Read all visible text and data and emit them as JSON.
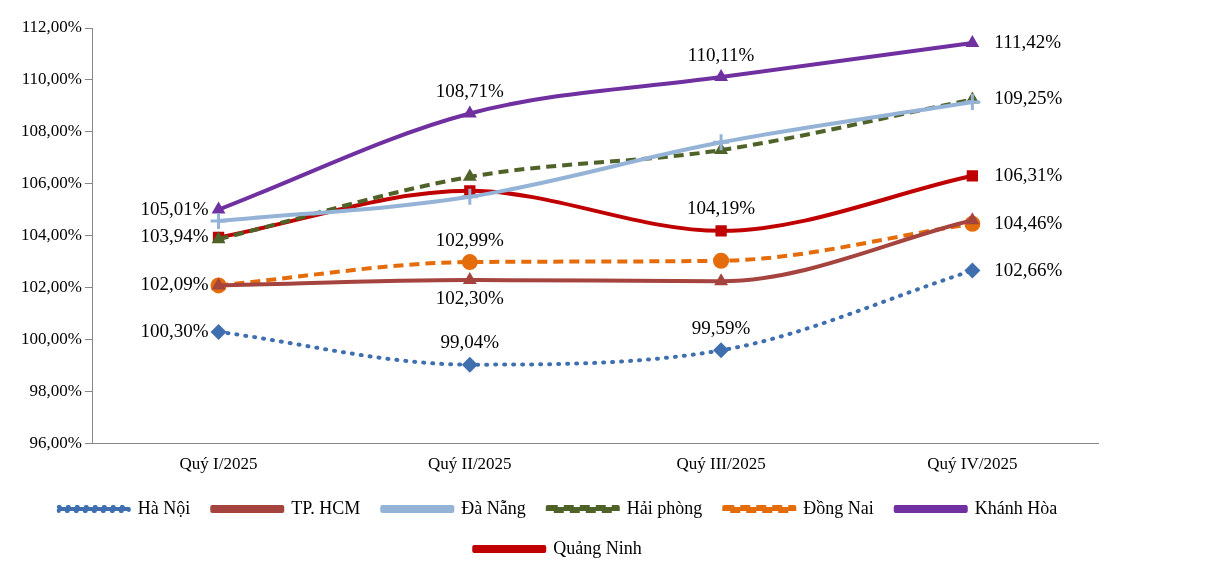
{
  "chart_data": {
    "type": "line",
    "categories": [
      "Quý I/2025",
      "Quý II/2025",
      "Quý III/2025",
      "Quý IV/2025"
    ],
    "ylim": [
      96,
      112
    ],
    "yticks": [
      {
        "value": 96,
        "label": "96,00%"
      },
      {
        "value": 98,
        "label": "98,00%"
      },
      {
        "value": 100,
        "label": "100,00%"
      },
      {
        "value": 102,
        "label": "102,00%"
      },
      {
        "value": 104,
        "label": "104,00%"
      },
      {
        "value": 106,
        "label": "106,00%"
      },
      {
        "value": 108,
        "label": "108,00%"
      },
      {
        "value": 110,
        "label": "110,00%"
      },
      {
        "value": 112,
        "label": "112,00%"
      }
    ],
    "grid": false,
    "legend": "bottom",
    "series": [
      {
        "name": "Hà Nội",
        "color": "#3f6faf",
        "line_style": "dotted",
        "marker": "diamond",
        "values": [
          100.3,
          99.04,
          99.59,
          102.66
        ],
        "value_labels": [
          "100,30%",
          "99,04%",
          "99,59%",
          "102,66%"
        ]
      },
      {
        "name": "TP. HCM",
        "color": "#a5443f",
        "line_style": "solid",
        "marker": "triangle",
        "values": [
          102.09,
          102.3,
          102.25,
          104.6
        ],
        "value_labels": [
          null,
          "102,30%",
          null,
          null
        ]
      },
      {
        "name": "Đà Nẵng",
        "color": "#95b3d7",
        "line_style": "solid",
        "marker": "cross",
        "values": [
          104.57,
          105.5,
          107.6,
          109.15
        ]
      },
      {
        "name": "Hải phòng",
        "color": "#4f6228",
        "line_style": "dashed",
        "marker": "triangle",
        "values": [
          103.87,
          106.27,
          107.3,
          109.25
        ],
        "value_labels": [
          null,
          null,
          null,
          "109,25%"
        ]
      },
      {
        "name": "Đồng Nai",
        "color": "#e46c0a",
        "line_style": "dashed",
        "marker": "circle",
        "values": [
          102.09,
          102.99,
          103.04,
          104.46
        ],
        "value_labels": [
          "102,09%",
          "102,99%",
          null,
          "104,46%"
        ]
      },
      {
        "name": "Khánh Hòa",
        "color": "#7030a0",
        "line_style": "solid",
        "marker": "triangle",
        "values": [
          105.01,
          108.71,
          110.11,
          111.42
        ],
        "value_labels": [
          "105,01%",
          "108,71%",
          "110,11%",
          "111,42%"
        ]
      },
      {
        "name": "Quảng Ninh",
        "color": "#c00000",
        "line_style": "solid",
        "marker": "square",
        "values": [
          103.94,
          105.73,
          104.19,
          106.31
        ],
        "value_labels": [
          "103,94%",
          null,
          "104,19%",
          "106,31%"
        ]
      }
    ]
  }
}
